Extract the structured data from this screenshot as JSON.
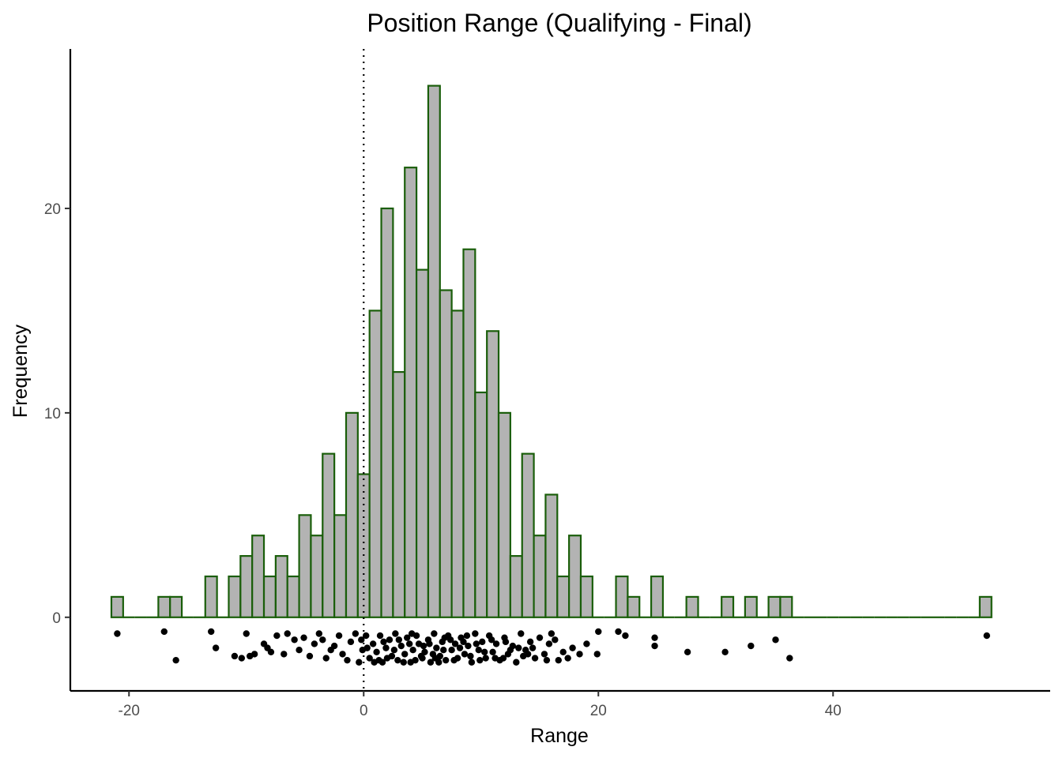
{
  "chart_data": {
    "type": "histogram",
    "title": "Position Range (Qualifying - Final)",
    "xlabel": "Range",
    "ylabel": "Frequency",
    "xlim": [
      -25,
      58.5
    ],
    "ylim": [
      -3.6,
      27.8
    ],
    "x_ticks": [
      -20,
      0,
      20,
      40
    ],
    "y_ticks": [
      0,
      10,
      20
    ],
    "bin_width": 1,
    "bars": [
      {
        "x": -21,
        "count": 1
      },
      {
        "x": -20,
        "count": 0
      },
      {
        "x": -19,
        "count": 0
      },
      {
        "x": -18,
        "count": 0
      },
      {
        "x": -17,
        "count": 1
      },
      {
        "x": -16,
        "count": 1
      },
      {
        "x": -15,
        "count": 0
      },
      {
        "x": -14,
        "count": 0
      },
      {
        "x": -13,
        "count": 2
      },
      {
        "x": -12,
        "count": 0
      },
      {
        "x": -11,
        "count": 2
      },
      {
        "x": -10,
        "count": 3
      },
      {
        "x": -9,
        "count": 4
      },
      {
        "x": -8,
        "count": 2
      },
      {
        "x": -7,
        "count": 3
      },
      {
        "x": -6,
        "count": 2
      },
      {
        "x": -5,
        "count": 5
      },
      {
        "x": -4,
        "count": 4
      },
      {
        "x": -3,
        "count": 8
      },
      {
        "x": -2,
        "count": 5
      },
      {
        "x": -1,
        "count": 10
      },
      {
        "x": 0,
        "count": 7
      },
      {
        "x": 1,
        "count": 15
      },
      {
        "x": 2,
        "count": 20
      },
      {
        "x": 3,
        "count": 12
      },
      {
        "x": 4,
        "count": 22
      },
      {
        "x": 5,
        "count": 17
      },
      {
        "x": 6,
        "count": 26
      },
      {
        "x": 7,
        "count": 16
      },
      {
        "x": 8,
        "count": 15
      },
      {
        "x": 9,
        "count": 18
      },
      {
        "x": 10,
        "count": 11
      },
      {
        "x": 11,
        "count": 14
      },
      {
        "x": 12,
        "count": 10
      },
      {
        "x": 13,
        "count": 3
      },
      {
        "x": 14,
        "count": 8
      },
      {
        "x": 15,
        "count": 4
      },
      {
        "x": 16,
        "count": 6
      },
      {
        "x": 17,
        "count": 2
      },
      {
        "x": 18,
        "count": 4
      },
      {
        "x": 19,
        "count": 2
      },
      {
        "x": 20,
        "count": 0
      },
      {
        "x": 21,
        "count": 0
      },
      {
        "x": 22,
        "count": 2
      },
      {
        "x": 23,
        "count": 1
      },
      {
        "x": 24,
        "count": 0
      },
      {
        "x": 25,
        "count": 2
      },
      {
        "x": 26,
        "count": 0
      },
      {
        "x": 27,
        "count": 0
      },
      {
        "x": 28,
        "count": 1
      },
      {
        "x": 29,
        "count": 0
      },
      {
        "x": 30,
        "count": 0
      },
      {
        "x": 31,
        "count": 1
      },
      {
        "x": 32,
        "count": 0
      },
      {
        "x": 33,
        "count": 1
      },
      {
        "x": 34,
        "count": 0
      },
      {
        "x": 35,
        "count": 1
      },
      {
        "x": 36,
        "count": 1
      },
      {
        "x": 37,
        "count": 0
      },
      {
        "x": 38,
        "count": 0
      },
      {
        "x": 39,
        "count": 0
      },
      {
        "x": 40,
        "count": 0
      },
      {
        "x": 41,
        "count": 0
      },
      {
        "x": 42,
        "count": 0
      },
      {
        "x": 43,
        "count": 0
      },
      {
        "x": 44,
        "count": 0
      },
      {
        "x": 45,
        "count": 0
      },
      {
        "x": 46,
        "count": 0
      },
      {
        "x": 47,
        "count": 0
      },
      {
        "x": 48,
        "count": 0
      },
      {
        "x": 49,
        "count": 0
      },
      {
        "x": 50,
        "count": 0
      },
      {
        "x": 51,
        "count": 0
      },
      {
        "x": 52,
        "count": 0
      },
      {
        "x": 53,
        "count": 1
      }
    ],
    "reference_line": {
      "x": 0,
      "style": "dotted"
    },
    "colors": {
      "bar_fill": "#b3b3b3",
      "bar_outline": "#1a5e0a",
      "points": "#000000",
      "reference_line": "#000000",
      "axis": "#000000",
      "tick_label": "#4d4d4d"
    },
    "grid": false,
    "jitter_points": {
      "description": "one point per observation, jittered vertically below zero",
      "points": [
        {
          "x": -21,
          "y": -0.8
        },
        {
          "x": -17,
          "y": -0.7
        },
        {
          "x": -16,
          "y": -2.1
        },
        {
          "x": -13,
          "y": -0.7
        },
        {
          "x": -12.6,
          "y": -1.5
        },
        {
          "x": -11,
          "y": -1.9
        },
        {
          "x": -10.4,
          "y": -2.0
        },
        {
          "x": -10,
          "y": -0.8
        },
        {
          "x": -9.7,
          "y": -1.9
        },
        {
          "x": -9.3,
          "y": -1.8
        },
        {
          "x": -8.5,
          "y": -1.3
        },
        {
          "x": -8.2,
          "y": -1.5
        },
        {
          "x": -7.9,
          "y": -1.7
        },
        {
          "x": -7.4,
          "y": -0.9
        },
        {
          "x": -6.8,
          "y": -1.8
        },
        {
          "x": -6.5,
          "y": -0.8
        },
        {
          "x": -5.9,
          "y": -1.1
        },
        {
          "x": -5.5,
          "y": -1.6
        },
        {
          "x": -5.1,
          "y": -1.0
        },
        {
          "x": -4.6,
          "y": -1.9
        },
        {
          "x": -4.2,
          "y": -1.3
        },
        {
          "x": -3.8,
          "y": -0.8
        },
        {
          "x": -3.5,
          "y": -1.1
        },
        {
          "x": -3.2,
          "y": -2.0
        },
        {
          "x": -2.8,
          "y": -1.6
        },
        {
          "x": -2.5,
          "y": -1.4
        },
        {
          "x": -2.1,
          "y": -0.9
        },
        {
          "x": -1.8,
          "y": -1.8
        },
        {
          "x": -1.4,
          "y": -2.1
        },
        {
          "x": -1.1,
          "y": -1.2
        },
        {
          "x": -0.7,
          "y": -0.8
        },
        {
          "x": -0.4,
          "y": -2.2
        },
        {
          "x": -0.1,
          "y": -1.6
        },
        {
          "x": 0.2,
          "y": -0.9
        },
        {
          "x": 0.5,
          "y": -2.0
        },
        {
          "x": 0.8,
          "y": -1.3
        },
        {
          "x": 1.1,
          "y": -1.7
        },
        {
          "x": 1.4,
          "y": -0.9
        },
        {
          "x": 1.6,
          "y": -2.2
        },
        {
          "x": 1.9,
          "y": -1.5
        },
        {
          "x": 2.2,
          "y": -1.1
        },
        {
          "x": 2.4,
          "y": -1.9
        },
        {
          "x": 2.7,
          "y": -0.8
        },
        {
          "x": 2.9,
          "y": -2.1
        },
        {
          "x": 3.2,
          "y": -1.4
        },
        {
          "x": 3.5,
          "y": -1.8
        },
        {
          "x": 3.7,
          "y": -1.0
        },
        {
          "x": 4.0,
          "y": -2.2
        },
        {
          "x": 4.2,
          "y": -1.6
        },
        {
          "x": 4.5,
          "y": -0.9
        },
        {
          "x": 4.7,
          "y": -1.3
        },
        {
          "x": 5.0,
          "y": -2.0
        },
        {
          "x": 5.2,
          "y": -1.7
        },
        {
          "x": 5.5,
          "y": -1.1
        },
        {
          "x": 5.7,
          "y": -2.2
        },
        {
          "x": 6.0,
          "y": -0.8
        },
        {
          "x": 6.2,
          "y": -1.5
        },
        {
          "x": 6.5,
          "y": -1.9
        },
        {
          "x": 6.7,
          "y": -1.2
        },
        {
          "x": 7.0,
          "y": -2.1
        },
        {
          "x": 7.2,
          "y": -0.9
        },
        {
          "x": 7.5,
          "y": -1.6
        },
        {
          "x": 7.8,
          "y": -1.3
        },
        {
          "x": 8.0,
          "y": -2.0
        },
        {
          "x": 8.3,
          "y": -1.0
        },
        {
          "x": 8.6,
          "y": -1.8
        },
        {
          "x": 8.9,
          "y": -1.4
        },
        {
          "x": 9.2,
          "y": -2.2
        },
        {
          "x": 9.5,
          "y": -0.8
        },
        {
          "x": 9.8,
          "y": -1.6
        },
        {
          "x": 10.1,
          "y": -1.2
        },
        {
          "x": 10.4,
          "y": -2.0
        },
        {
          "x": 10.7,
          "y": -0.9
        },
        {
          "x": 11.0,
          "y": -1.7
        },
        {
          "x": 11.3,
          "y": -1.3
        },
        {
          "x": 11.6,
          "y": -2.1
        },
        {
          "x": 12.0,
          "y": -1.0
        },
        {
          "x": 12.3,
          "y": -1.8
        },
        {
          "x": 12.7,
          "y": -1.4
        },
        {
          "x": 13.0,
          "y": -2.2
        },
        {
          "x": 13.4,
          "y": -0.8
        },
        {
          "x": 13.8,
          "y": -1.6
        },
        {
          "x": 14.2,
          "y": -1.2
        },
        {
          "x": 14.6,
          "y": -2.0
        },
        {
          "x": 15.0,
          "y": -1.0
        },
        {
          "x": 15.4,
          "y": -1.8
        },
        {
          "x": 15.8,
          "y": -1.3
        },
        {
          "x": 16.3,
          "y": -1.1
        },
        {
          "x": 16.6,
          "y": -2.1
        },
        {
          "x": 17.0,
          "y": -1.7
        },
        {
          "x": 17.4,
          "y": -2.0
        },
        {
          "x": 17.8,
          "y": -1.5
        },
        {
          "x": 18.4,
          "y": -1.8
        },
        {
          "x": 19.0,
          "y": -1.3
        },
        {
          "x": 19.9,
          "y": -1.8
        },
        {
          "x": 20.0,
          "y": -0.7
        },
        {
          "x": 21.7,
          "y": -0.7
        },
        {
          "x": 22.3,
          "y": -0.9
        },
        {
          "x": 24.8,
          "y": -1.0
        },
        {
          "x": 24.8,
          "y": -1.4
        },
        {
          "x": 27.6,
          "y": -1.7
        },
        {
          "x": 30.8,
          "y": -1.7
        },
        {
          "x": 33.0,
          "y": -1.4
        },
        {
          "x": 35.1,
          "y": -1.1
        },
        {
          "x": 36.3,
          "y": -2.0
        },
        {
          "x": 53.1,
          "y": -0.9
        },
        {
          "x": 0.9,
          "y": -2.2
        },
        {
          "x": 1.3,
          "y": -2.1
        },
        {
          "x": 2.0,
          "y": -2.0
        },
        {
          "x": 3.0,
          "y": -1.1
        },
        {
          "x": 3.9,
          "y": -1.3
        },
        {
          "x": 4.4,
          "y": -2.1
        },
        {
          "x": 5.1,
          "y": -1.4
        },
        {
          "x": 5.9,
          "y": -1.8
        },
        {
          "x": 6.4,
          "y": -2.2
        },
        {
          "x": 6.9,
          "y": -1.0
        },
        {
          "x": 7.7,
          "y": -2.1
        },
        {
          "x": 8.5,
          "y": -1.2
        },
        {
          "x": 9.1,
          "y": -1.9
        },
        {
          "x": 9.9,
          "y": -2.1
        },
        {
          "x": 10.9,
          "y": -1.1
        },
        {
          "x": 11.9,
          "y": -2.0
        },
        {
          "x": 12.5,
          "y": -1.6
        },
        {
          "x": 13.6,
          "y": -1.9
        },
        {
          "x": 14.4,
          "y": -1.5
        },
        {
          "x": 15.6,
          "y": -2.1
        },
        {
          "x": -0.2,
          "y": -1.1
        },
        {
          "x": 0.3,
          "y": -1.5
        },
        {
          "x": 1.7,
          "y": -1.2
        },
        {
          "x": 2.6,
          "y": -1.6
        },
        {
          "x": 3.4,
          "y": -2.2
        },
        {
          "x": 4.1,
          "y": -0.8
        },
        {
          "x": 4.9,
          "y": -1.9
        },
        {
          "x": 5.6,
          "y": -1.3
        },
        {
          "x": 6.1,
          "y": -2.0
        },
        {
          "x": 6.8,
          "y": -1.6
        },
        {
          "x": 7.4,
          "y": -1.1
        },
        {
          "x": 8.2,
          "y": -1.5
        },
        {
          "x": 8.8,
          "y": -0.9
        },
        {
          "x": 9.6,
          "y": -1.3
        },
        {
          "x": 10.3,
          "y": -1.7
        },
        {
          "x": 11.2,
          "y": -2.0
        },
        {
          "x": 12.1,
          "y": -1.2
        },
        {
          "x": 13.2,
          "y": -1.5
        },
        {
          "x": 14.0,
          "y": -1.8
        },
        {
          "x": 16.0,
          "y": -0.8
        }
      ]
    }
  }
}
